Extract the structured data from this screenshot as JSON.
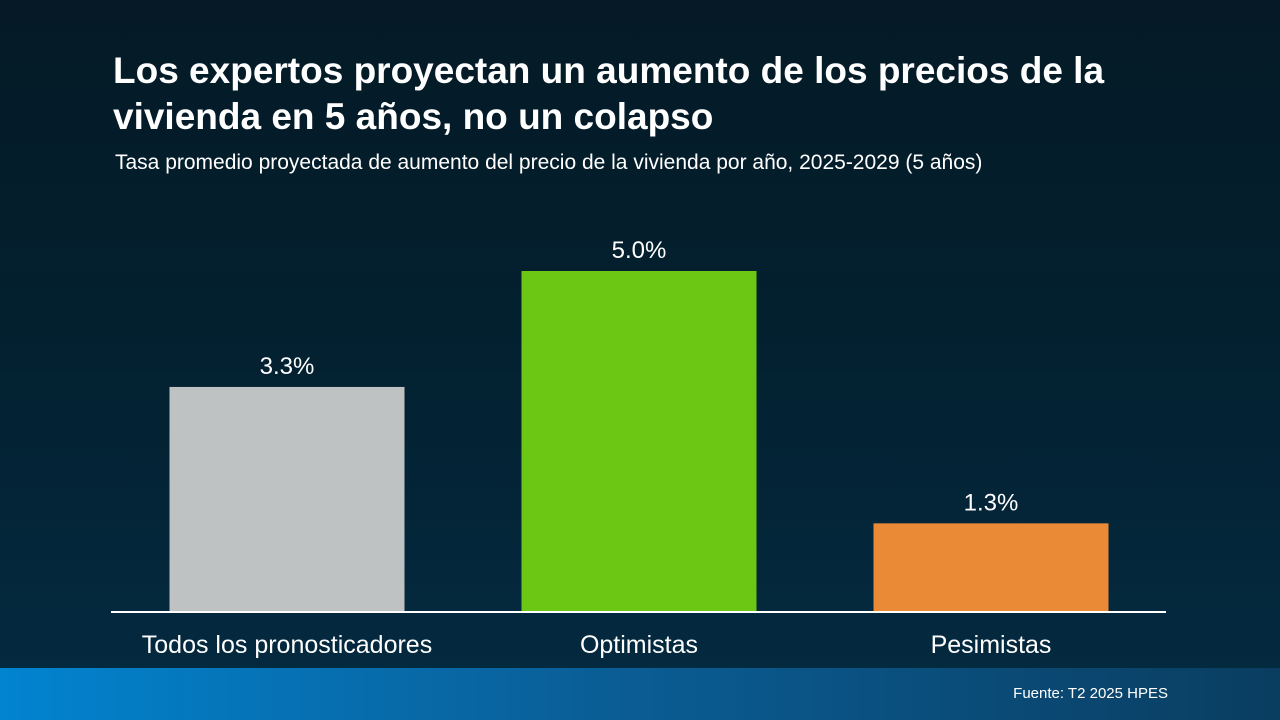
{
  "header": {
    "title": "Los expertos proyectan un aumento de los precios de la vivienda en 5 años, no un colapso",
    "subtitle": "Tasa promedio proyectada de aumento del precio de la vivienda por año, 2025-2029 (5 años)"
  },
  "footer": {
    "source": "Fuente: T2 2025 HPES"
  },
  "chart_data": {
    "type": "bar",
    "title": "Los expertos proyectan un aumento de los precios de la vivienda en 5 años, no un colapso",
    "subtitle": "Tasa promedio proyectada de aumento del precio de la vivienda por año, 2025-2029 (5 años)",
    "categories": [
      "Todos los pronosticadores",
      "Optimistas",
      "Pesimistas"
    ],
    "values": [
      3.3,
      5.0,
      1.3
    ],
    "value_labels": [
      "3.3%",
      "5.0%",
      "1.3%"
    ],
    "colors": [
      "#bfc2c3",
      "#6cc714",
      "#ea8a37"
    ],
    "axis_color": "#ffffff",
    "ylim": [
      0,
      5.0
    ],
    "grid": false,
    "legend": "none",
    "xlabel": "",
    "ylabel": ""
  }
}
